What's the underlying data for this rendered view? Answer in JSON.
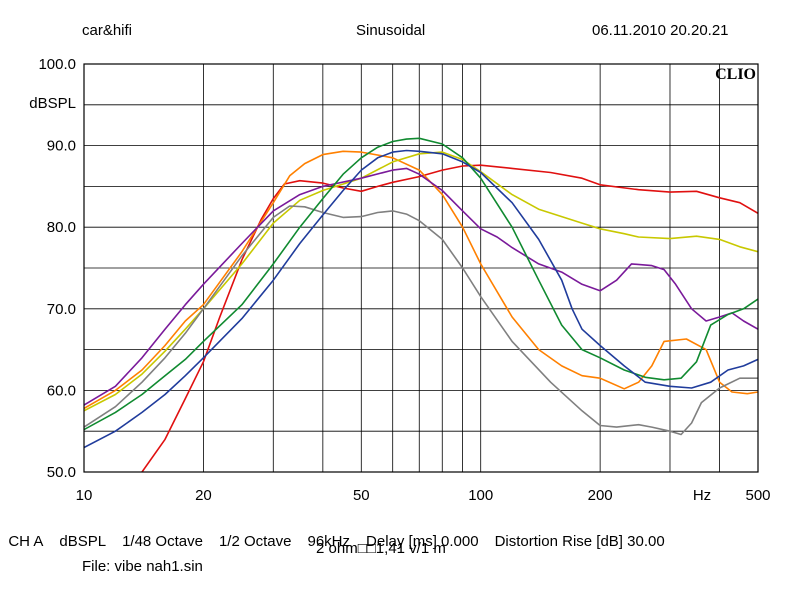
{
  "header": {
    "left": "car&hifi",
    "center": "Sinusoidal",
    "right": "06.11.2010 20.20.21",
    "logo": "CLIO"
  },
  "footer": {
    "channel": "CH A",
    "unit": "dBSPL",
    "resolution": "1/48 Octave",
    "smoothing": "1/2 Octave",
    "sample_rate": "96kHz",
    "delay": "Delay [ms] 0.000",
    "distortion": "Distortion Rise [dB] 30.00",
    "calibration": "2 ohm□□1,41 v/1 m",
    "file": "File: vibe nah1.sin"
  },
  "chart_data": {
    "type": "line",
    "xscale": "log",
    "xlim": [
      10,
      500
    ],
    "ylim": [
      50,
      100
    ],
    "ylabel": "dBSPL",
    "xunit": "Hz",
    "grid": true,
    "xticks": [
      {
        "v": 10,
        "label": "10"
      },
      {
        "v": 20,
        "label": "20"
      },
      {
        "v": 50,
        "label": "50"
      },
      {
        "v": 100,
        "label": "100"
      },
      {
        "v": 200,
        "label": "200"
      },
      {
        "v": 500,
        "label": "500"
      }
    ],
    "yticks": [
      {
        "v": 100,
        "label": "100.0"
      },
      {
        "v": 90,
        "label": "90.0"
      },
      {
        "v": 80,
        "label": "80.0"
      },
      {
        "v": 70,
        "label": "70.0"
      },
      {
        "v": 60,
        "label": "60.0"
      },
      {
        "v": 50,
        "label": "50.0"
      }
    ],
    "series": [
      {
        "color": "#e01010",
        "points": [
          [
            14,
            50
          ],
          [
            16,
            54
          ],
          [
            18,
            59
          ],
          [
            20,
            63.5
          ],
          [
            22,
            69
          ],
          [
            25,
            76
          ],
          [
            28,
            81
          ],
          [
            30,
            83.5
          ],
          [
            32,
            85.3
          ],
          [
            35,
            85.7
          ],
          [
            40,
            85.4
          ],
          [
            45,
            84.8
          ],
          [
            50,
            84.4
          ],
          [
            55,
            85
          ],
          [
            60,
            85.5
          ],
          [
            70,
            86.2
          ],
          [
            80,
            87
          ],
          [
            90,
            87.5
          ],
          [
            100,
            87.6
          ],
          [
            120,
            87.2
          ],
          [
            150,
            86.7
          ],
          [
            180,
            86
          ],
          [
            200,
            85.2
          ],
          [
            250,
            84.6
          ],
          [
            300,
            84.3
          ],
          [
            350,
            84.4
          ],
          [
            400,
            83.6
          ],
          [
            450,
            83
          ],
          [
            500,
            81.7
          ]
        ]
      },
      {
        "color": "#ff8000",
        "points": [
          [
            10,
            57.8
          ],
          [
            12,
            60
          ],
          [
            14,
            62.5
          ],
          [
            16,
            65.5
          ],
          [
            18,
            68.5
          ],
          [
            20,
            70.5
          ],
          [
            25,
            77
          ],
          [
            30,
            83
          ],
          [
            33,
            86.3
          ],
          [
            36,
            87.8
          ],
          [
            40,
            88.9
          ],
          [
            45,
            89.3
          ],
          [
            50,
            89.2
          ],
          [
            60,
            88.5
          ],
          [
            70,
            87
          ],
          [
            80,
            84
          ],
          [
            90,
            80
          ],
          [
            100,
            75.5
          ],
          [
            120,
            69
          ],
          [
            140,
            65
          ],
          [
            160,
            63
          ],
          [
            180,
            61.8
          ],
          [
            200,
            61.5
          ],
          [
            230,
            60.2
          ],
          [
            250,
            61
          ],
          [
            270,
            63
          ],
          [
            290,
            66
          ],
          [
            330,
            66.3
          ],
          [
            370,
            65
          ],
          [
            400,
            61
          ],
          [
            430,
            59.8
          ],
          [
            470,
            59.6
          ],
          [
            500,
            59.8
          ]
        ]
      },
      {
        "color": "#c8c800",
        "points": [
          [
            10,
            57.5
          ],
          [
            12,
            59.5
          ],
          [
            14,
            62
          ],
          [
            16,
            64.8
          ],
          [
            18,
            67.5
          ],
          [
            20,
            70
          ],
          [
            25,
            75.5
          ],
          [
            30,
            80.5
          ],
          [
            35,
            83.3
          ],
          [
            40,
            84.5
          ],
          [
            50,
            86
          ],
          [
            60,
            88
          ],
          [
            70,
            89
          ],
          [
            80,
            89.2
          ],
          [
            90,
            88.3
          ],
          [
            100,
            86.8
          ],
          [
            120,
            84
          ],
          [
            140,
            82.2
          ],
          [
            160,
            81.3
          ],
          [
            180,
            80.5
          ],
          [
            200,
            79.8
          ],
          [
            230,
            79.2
          ],
          [
            250,
            78.8
          ],
          [
            300,
            78.6
          ],
          [
            350,
            78.9
          ],
          [
            400,
            78.5
          ],
          [
            450,
            77.6
          ],
          [
            500,
            77
          ]
        ]
      },
      {
        "color": "#808080",
        "points": [
          [
            10,
            55.5
          ],
          [
            12,
            58
          ],
          [
            14,
            61
          ],
          [
            16,
            64
          ],
          [
            18,
            67
          ],
          [
            20,
            70
          ],
          [
            25,
            76.5
          ],
          [
            30,
            81.2
          ],
          [
            33,
            82.6
          ],
          [
            36,
            82.5
          ],
          [
            40,
            81.8
          ],
          [
            45,
            81.2
          ],
          [
            50,
            81.3
          ],
          [
            55,
            81.8
          ],
          [
            60,
            82
          ],
          [
            65,
            81.6
          ],
          [
            70,
            80.8
          ],
          [
            80,
            78.5
          ],
          [
            90,
            75
          ],
          [
            100,
            71.5
          ],
          [
            120,
            66
          ],
          [
            150,
            61
          ],
          [
            180,
            57.5
          ],
          [
            200,
            55.7
          ],
          [
            220,
            55.5
          ],
          [
            250,
            55.8
          ],
          [
            270,
            55.5
          ],
          [
            300,
            55
          ],
          [
            320,
            54.6
          ],
          [
            340,
            56
          ],
          [
            360,
            58.5
          ],
          [
            400,
            60.3
          ],
          [
            450,
            61.5
          ],
          [
            500,
            61.5
          ]
        ]
      },
      {
        "color": "#7a1a9a",
        "points": [
          [
            10,
            58.2
          ],
          [
            12,
            60.5
          ],
          [
            14,
            64
          ],
          [
            16,
            67.5
          ],
          [
            18,
            70.5
          ],
          [
            20,
            73
          ],
          [
            25,
            78
          ],
          [
            30,
            82
          ],
          [
            35,
            84
          ],
          [
            40,
            85
          ],
          [
            50,
            86
          ],
          [
            60,
            87
          ],
          [
            65,
            87.2
          ],
          [
            70,
            86.5
          ],
          [
            80,
            84.5
          ],
          [
            90,
            82
          ],
          [
            100,
            79.8
          ],
          [
            110,
            78.8
          ],
          [
            120,
            77.5
          ],
          [
            140,
            75.5
          ],
          [
            160,
            74.5
          ],
          [
            180,
            73
          ],
          [
            200,
            72.2
          ],
          [
            220,
            73.5
          ],
          [
            240,
            75.5
          ],
          [
            270,
            75.3
          ],
          [
            290,
            74.8
          ],
          [
            310,
            73
          ],
          [
            340,
            70
          ],
          [
            370,
            68.5
          ],
          [
            400,
            69
          ],
          [
            430,
            69.5
          ],
          [
            460,
            68.5
          ],
          [
            500,
            67.5
          ]
        ]
      },
      {
        "color": "#108a30",
        "points": [
          [
            10,
            55.2
          ],
          [
            12,
            57.3
          ],
          [
            14,
            59.5
          ],
          [
            16,
            61.8
          ],
          [
            18,
            63.8
          ],
          [
            20,
            66
          ],
          [
            25,
            70.5
          ],
          [
            30,
            75.5
          ],
          [
            35,
            80
          ],
          [
            40,
            83.5
          ],
          [
            45,
            86.5
          ],
          [
            50,
            88.5
          ],
          [
            55,
            89.8
          ],
          [
            60,
            90.5
          ],
          [
            65,
            90.8
          ],
          [
            70,
            90.9
          ],
          [
            80,
            90.2
          ],
          [
            90,
            88.5
          ],
          [
            100,
            86
          ],
          [
            120,
            80
          ],
          [
            140,
            73.5
          ],
          [
            160,
            68
          ],
          [
            180,
            65
          ],
          [
            200,
            64
          ],
          [
            230,
            62.5
          ],
          [
            260,
            61.6
          ],
          [
            290,
            61.3
          ],
          [
            320,
            61.5
          ],
          [
            350,
            63.5
          ],
          [
            380,
            68
          ],
          [
            420,
            69.3
          ],
          [
            460,
            70
          ],
          [
            500,
            71.2
          ]
        ]
      },
      {
        "color": "#203c9c",
        "points": [
          [
            10,
            53
          ],
          [
            12,
            55
          ],
          [
            14,
            57.3
          ],
          [
            16,
            59.5
          ],
          [
            18,
            61.8
          ],
          [
            20,
            64
          ],
          [
            25,
            68.8
          ],
          [
            30,
            73.5
          ],
          [
            35,
            78
          ],
          [
            40,
            81.5
          ],
          [
            45,
            84.5
          ],
          [
            50,
            87
          ],
          [
            55,
            88.5
          ],
          [
            60,
            89.2
          ],
          [
            65,
            89.4
          ],
          [
            70,
            89.3
          ],
          [
            80,
            89
          ],
          [
            90,
            88
          ],
          [
            100,
            86.7
          ],
          [
            120,
            83
          ],
          [
            140,
            78.5
          ],
          [
            160,
            73.5
          ],
          [
            170,
            70
          ],
          [
            180,
            67.5
          ],
          [
            200,
            65.5
          ],
          [
            230,
            63
          ],
          [
            260,
            61
          ],
          [
            300,
            60.5
          ],
          [
            340,
            60.3
          ],
          [
            380,
            61
          ],
          [
            420,
            62.5
          ],
          [
            460,
            63
          ],
          [
            500,
            63.8
          ]
        ]
      }
    ]
  }
}
